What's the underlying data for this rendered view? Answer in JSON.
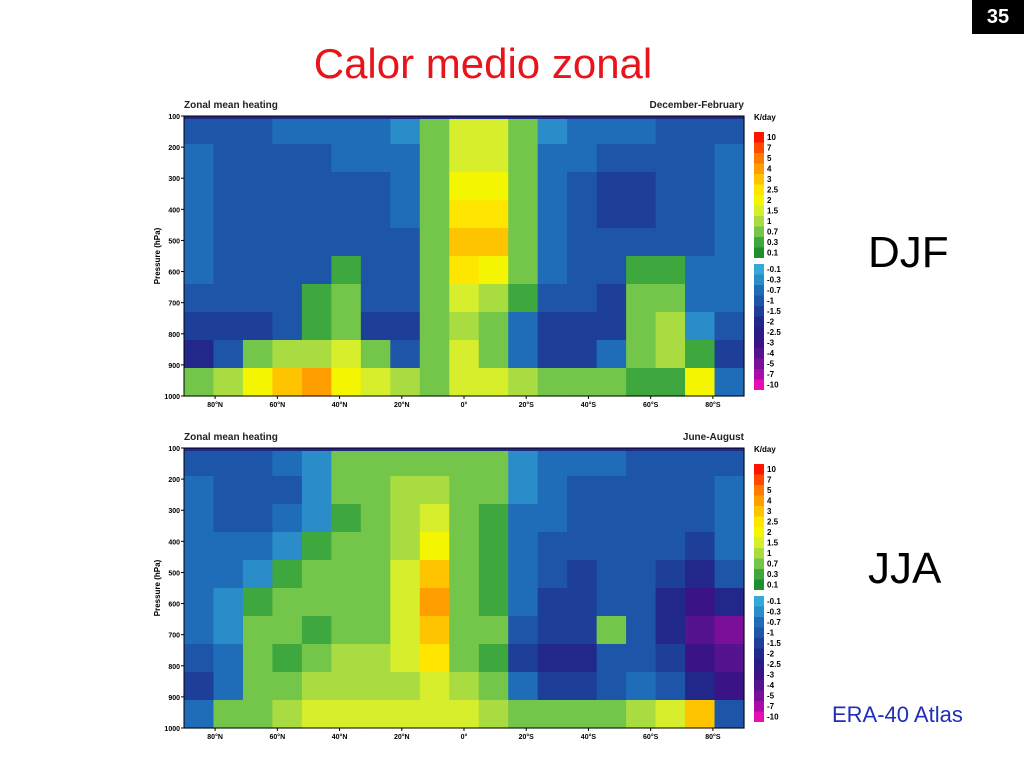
{
  "slide": {
    "number": "35",
    "title": "Calor medio zonal",
    "labels": {
      "djf": "DJF",
      "jja": "JJA"
    },
    "source": "ERA-40 Atlas"
  },
  "chart_data": [
    {
      "type": "heatmap",
      "title": "Zonal mean heating",
      "subtitle": "December-February",
      "ylabel": "Pressure (hPa)",
      "yticks": [
        "100",
        "200",
        "300",
        "400",
        "500",
        "600",
        "700",
        "800",
        "900",
        "1000"
      ],
      "xticks": [
        "80°N",
        "60°N",
        "40°N",
        "20°N",
        "0°",
        "20°S",
        "40°S",
        "60°S",
        "80°S"
      ],
      "x_range": [
        90,
        -90
      ],
      "y_range": [
        100,
        1000
      ],
      "units": "K/day",
      "colorbar_levels": [
        "10",
        "7",
        "5",
        "4",
        "3",
        "2.5",
        "2",
        "1.5",
        "1",
        "0.7",
        "0.3",
        "0.1",
        "-0.1",
        "-0.3",
        "-0.7",
        "-1",
        "-1.5",
        "-2",
        "-2.5",
        "-3",
        "-4",
        "-5",
        "-7",
        "-10"
      ],
      "colorbar_colors": [
        "#ff1400",
        "#ff4a00",
        "#ff7a00",
        "#ff9e00",
        "#ffc400",
        "#ffe600",
        "#f4f500",
        "#d6ee2c",
        "#a8dc40",
        "#74c64a",
        "#3ea83e",
        "#1f8f2e",
        "#36a8d8",
        "#2a8cc8",
        "#1f6db8",
        "#1d55a8",
        "#1d3f98",
        "#22288a",
        "#2a1c84",
        "#3a1486",
        "#561390",
        "#7a0f9a",
        "#a90ca8",
        "#e60eb0"
      ],
      "field": [
        [
          -1,
          -1,
          -0.8,
          -0.7,
          -0.6,
          -0.5,
          -0.4,
          -0.3,
          0.5,
          1.5,
          1.5,
          0.5,
          -0.3,
          -0.5,
          -0.6,
          -0.7,
          -0.8,
          -0.9,
          -1
        ],
        [
          -0.7,
          -0.8,
          -1,
          -1,
          -0.9,
          -0.7,
          -0.6,
          -0.5,
          0.7,
          1.5,
          1.5,
          0.7,
          -0.5,
          -0.7,
          -1,
          -1,
          -1,
          -0.8,
          -0.7
        ],
        [
          -0.7,
          -0.8,
          -1,
          -1,
          -1,
          -0.9,
          -0.8,
          -0.6,
          0.7,
          2,
          2,
          0.7,
          -0.6,
          -0.9,
          -1.5,
          -1.5,
          -1,
          -0.8,
          -0.7
        ],
        [
          -0.7,
          -1,
          -1,
          -1,
          -1,
          -1,
          -1,
          -0.7,
          0.5,
          2.5,
          2.5,
          0.7,
          -0.7,
          -1,
          -1.5,
          -1.2,
          -1,
          -0.8,
          -0.7
        ],
        [
          -0.7,
          -1,
          -1,
          -1,
          -1,
          -1,
          -1,
          -1,
          0.5,
          3,
          3,
          0.7,
          -0.7,
          -1,
          -1,
          -1,
          -1,
          -0.8,
          -0.7
        ],
        [
          -0.7,
          -1,
          -1,
          -1,
          -1,
          0.3,
          -1,
          -1,
          0.5,
          2.5,
          2,
          0.5,
          -0.7,
          -1,
          -1,
          0.3,
          0.3,
          -0.7,
          -0.7
        ],
        [
          -1,
          -1,
          -1,
          -1,
          0.3,
          0.7,
          -1,
          -1,
          0.5,
          1.5,
          1,
          0.3,
          -1,
          -1,
          -1.5,
          0.7,
          0.7,
          -0.7,
          -0.7
        ],
        [
          -1.5,
          -1.5,
          -1.5,
          -1,
          0.3,
          0.7,
          -1.5,
          -1.5,
          0.5,
          1,
          0.7,
          -0.5,
          -1.5,
          -1.5,
          -1.5,
          0.7,
          1,
          -0.3,
          -1
        ],
        [
          -2,
          -1,
          0.5,
          1,
          1,
          1.5,
          0.7,
          -1,
          0.7,
          1.5,
          0.7,
          -0.7,
          -1.5,
          -1.5,
          -0.7,
          0.7,
          1,
          0.3,
          -1.5
        ],
        [
          0.5,
          1,
          2,
          3,
          3.5,
          2,
          1.5,
          1,
          0.7,
          1.5,
          1.5,
          1,
          0.7,
          0.7,
          0.5,
          0.3,
          0.3,
          2,
          -0.5
        ]
      ]
    },
    {
      "type": "heatmap",
      "title": "Zonal mean heating",
      "subtitle": "June-August",
      "ylabel": "Pressure (hPa)",
      "yticks": [
        "100",
        "200",
        "300",
        "400",
        "500",
        "600",
        "700",
        "800",
        "900",
        "1000"
      ],
      "xticks": [
        "80°N",
        "60°N",
        "40°N",
        "20°N",
        "0°",
        "20°S",
        "40°S",
        "60°S",
        "80°S"
      ],
      "x_range": [
        90,
        -90
      ],
      "y_range": [
        100,
        1000
      ],
      "units": "K/day",
      "colorbar_levels": [
        "10",
        "7",
        "5",
        "4",
        "3",
        "2.5",
        "2",
        "1.5",
        "1",
        "0.7",
        "0.3",
        "0.1",
        "-0.1",
        "-0.3",
        "-0.7",
        "-1",
        "-1.5",
        "-2",
        "-2.5",
        "-3",
        "-4",
        "-5",
        "-7",
        "-10"
      ],
      "colorbar_colors": [
        "#ff1400",
        "#ff4a00",
        "#ff7a00",
        "#ff9e00",
        "#ffc400",
        "#ffe600",
        "#f4f500",
        "#d6ee2c",
        "#a8dc40",
        "#74c64a",
        "#3ea83e",
        "#1f8f2e",
        "#36a8d8",
        "#2a8cc8",
        "#1f6db8",
        "#1d55a8",
        "#1d3f98",
        "#22288a",
        "#2a1c84",
        "#3a1486",
        "#561390",
        "#7a0f9a",
        "#a90ca8",
        "#e60eb0"
      ],
      "field": [
        [
          -1,
          -1,
          -0.8,
          -0.6,
          -0.3,
          0.5,
          0.7,
          0.7,
          0.7,
          0.7,
          0.5,
          -0.3,
          -0.5,
          -0.6,
          -0.7,
          -0.8,
          -0.9,
          -1,
          -1
        ],
        [
          -0.7,
          -0.8,
          -1,
          -0.8,
          -0.3,
          0.5,
          0.7,
          1,
          1,
          0.7,
          0.5,
          -0.3,
          -0.7,
          -0.8,
          -1,
          -1,
          -1,
          -0.8,
          -0.7
        ],
        [
          -0.7,
          -0.8,
          -0.8,
          -0.7,
          -0.3,
          0.3,
          0.5,
          1,
          1.5,
          0.7,
          0.3,
          -0.5,
          -0.7,
          -1,
          -1,
          -1,
          -1,
          -1,
          -0.7
        ],
        [
          -0.7,
          -0.7,
          -0.5,
          -0.3,
          0.3,
          0.5,
          0.5,
          1,
          2,
          0.7,
          0.3,
          -0.7,
          -1,
          -1,
          -1,
          -1,
          -1,
          -1.5,
          -0.7
        ],
        [
          -0.7,
          -0.5,
          -0.3,
          0.3,
          0.5,
          0.7,
          0.7,
          1.5,
          3,
          0.7,
          0.3,
          -0.7,
          -1,
          -1.5,
          -1,
          -1,
          -1.5,
          -2,
          -1
        ],
        [
          -0.7,
          -0.3,
          0.3,
          0.7,
          0.7,
          0.7,
          0.7,
          1.5,
          4,
          0.7,
          0.3,
          -0.7,
          -1.5,
          -1.5,
          -1,
          -1,
          -2,
          -3,
          -2
        ],
        [
          -0.7,
          -0.3,
          0.7,
          0.7,
          0.3,
          0.7,
          0.7,
          1.5,
          3,
          0.7,
          0.5,
          -1,
          -1.5,
          -1.5,
          0.5,
          -1,
          -2,
          -4,
          -5
        ],
        [
          -1,
          -0.7,
          0.7,
          0.3,
          0.7,
          1,
          1,
          1.5,
          2.5,
          0.7,
          0.3,
          -1.5,
          -2,
          -2,
          -1,
          -1,
          -1.5,
          -3,
          -4
        ],
        [
          -1.5,
          -0.7,
          0.5,
          0.7,
          1,
          1,
          1,
          1,
          1.5,
          1,
          0.5,
          -0.7,
          -1.5,
          -1.5,
          -1,
          -0.7,
          -1,
          -2,
          -3
        ],
        [
          -0.7,
          0.7,
          0.7,
          1,
          1.5,
          1.5,
          1.5,
          1.5,
          1.5,
          1.5,
          1,
          0.7,
          0.7,
          0.7,
          0.7,
          1,
          1.5,
          3,
          -1
        ]
      ]
    }
  ]
}
